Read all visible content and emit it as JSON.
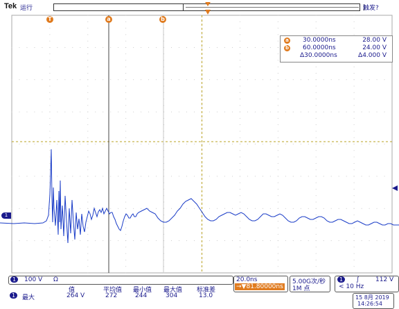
{
  "top": {
    "logo": "Tek",
    "run_state": "运行",
    "trigger_state": "触发?"
  },
  "markers": {
    "trigger_pos": "T",
    "cursor_a": "a",
    "cursor_b": "b"
  },
  "cursor_readout": {
    "a_time": "30.0000ns",
    "a_value": "28.00 V",
    "b_time": "60.0000ns",
    "b_value": "24.00 V",
    "delta_time": "Δ30.0000ns",
    "delta_value": "Δ4.000 V"
  },
  "channel": {
    "badge": "1",
    "scale": "100 V",
    "coupling": "Ω"
  },
  "measurement": {
    "badge": "1",
    "name": "最大",
    "headers": [
      "值",
      "平均值",
      "最小值",
      "最大值",
      "标准差"
    ],
    "values": [
      "264 V",
      "272",
      "244",
      "304",
      "13.0"
    ]
  },
  "timebase": {
    "scale": "20.0ns",
    "position": "→▼81.80000ns"
  },
  "acquisition": {
    "rate": "5.00G次/秒",
    "record": "1M 点"
  },
  "trigger": {
    "badge": "1",
    "slope": "∫",
    "level": "112 V",
    "freq": "< 10 Hz"
  },
  "datetime": {
    "date": "15 8月  2019",
    "time": "14:26:54"
  },
  "chart_data": {
    "type": "line",
    "series": [
      {
        "values": [
          [
            0,
            301
          ],
          [
            20,
            302
          ],
          [
            35,
            301
          ],
          [
            50,
            302
          ],
          [
            62,
            301
          ],
          [
            67,
            298
          ],
          [
            70,
            290
          ],
          [
            72,
            260
          ],
          [
            73,
            230
          ],
          [
            74,
            195
          ],
          [
            75,
            265
          ],
          [
            76,
            300
          ],
          [
            77,
            250
          ],
          [
            78,
            280
          ],
          [
            80,
            305
          ],
          [
            82,
            268
          ],
          [
            84,
            318
          ],
          [
            85,
            255
          ],
          [
            86,
            300
          ],
          [
            87,
            240
          ],
          [
            88,
            310
          ],
          [
            90,
            276
          ],
          [
            92,
            320
          ],
          [
            94,
            262
          ],
          [
            96,
            298
          ],
          [
            98,
            330
          ],
          [
            100,
            280
          ],
          [
            102,
            316
          ],
          [
            104,
            268
          ],
          [
            106,
            300
          ],
          [
            108,
            325
          ],
          [
            110,
            286
          ],
          [
            112,
            310
          ],
          [
            114,
            295
          ],
          [
            116,
            318
          ],
          [
            118,
            288
          ],
          [
            120,
            306
          ],
          [
            122,
            314
          ],
          [
            124,
            300
          ],
          [
            126,
            292
          ],
          [
            128,
            284
          ],
          [
            130,
            288
          ],
          [
            132,
            296
          ],
          [
            134,
            290
          ],
          [
            136,
            280
          ],
          [
            138,
            286
          ],
          [
            140,
            292
          ],
          [
            142,
            285
          ],
          [
            144,
            282
          ],
          [
            146,
            286
          ],
          [
            148,
            280
          ],
          [
            150,
            288
          ],
          [
            152,
            284
          ],
          [
            154,
            280
          ],
          [
            156,
            284
          ],
          [
            158,
            288
          ],
          [
            160,
            286
          ],
          [
            162,
            286
          ],
          [
            164,
            292
          ],
          [
            166,
            296
          ],
          [
            168,
            302
          ],
          [
            170,
            306
          ],
          [
            172,
            310
          ],
          [
            174,
            312
          ],
          [
            176,
            306
          ],
          [
            178,
            298
          ],
          [
            180,
            292
          ],
          [
            182,
            288
          ],
          [
            184,
            290
          ],
          [
            186,
            294
          ],
          [
            188,
            294
          ],
          [
            190,
            290
          ],
          [
            192,
            288
          ],
          [
            194,
            292
          ],
          [
            196,
            292
          ],
          [
            198,
            288
          ],
          [
            200,
            286
          ],
          [
            204,
            284
          ],
          [
            208,
            282
          ],
          [
            212,
            280
          ],
          [
            216,
            284
          ],
          [
            220,
            286
          ],
          [
            224,
            288
          ],
          [
            228,
            294
          ],
          [
            232,
            298
          ],
          [
            236,
            300
          ],
          [
            240,
            300
          ],
          [
            244,
            298
          ],
          [
            248,
            294
          ],
          [
            252,
            290
          ],
          [
            256,
            284
          ],
          [
            260,
            280
          ],
          [
            264,
            274
          ],
          [
            268,
            270
          ],
          [
            272,
            268
          ],
          [
            276,
            266
          ],
          [
            280,
            270
          ],
          [
            284,
            274
          ],
          [
            288,
            280
          ],
          [
            292,
            286
          ],
          [
            296,
            292
          ],
          [
            300,
            296
          ],
          [
            304,
            298
          ],
          [
            308,
            298
          ],
          [
            312,
            296
          ],
          [
            316,
            292
          ],
          [
            320,
            290
          ],
          [
            324,
            288
          ],
          [
            328,
            286
          ],
          [
            332,
            286
          ],
          [
            336,
            288
          ],
          [
            340,
            290
          ],
          [
            344,
            288
          ],
          [
            348,
            286
          ],
          [
            352,
            288
          ],
          [
            356,
            292
          ],
          [
            360,
            296
          ],
          [
            364,
            298
          ],
          [
            368,
            298
          ],
          [
            372,
            296
          ],
          [
            376,
            292
          ],
          [
            380,
            288
          ],
          [
            384,
            288
          ],
          [
            388,
            290
          ],
          [
            392,
            292
          ],
          [
            396,
            292
          ],
          [
            400,
            290
          ],
          [
            404,
            288
          ],
          [
            408,
            290
          ],
          [
            412,
            294
          ],
          [
            416,
            298
          ],
          [
            420,
            300
          ],
          [
            424,
            300
          ],
          [
            428,
            298
          ],
          [
            432,
            294
          ],
          [
            436,
            292
          ],
          [
            440,
            292
          ],
          [
            444,
            294
          ],
          [
            448,
            296
          ],
          [
            452,
            296
          ],
          [
            456,
            294
          ],
          [
            460,
            292
          ],
          [
            464,
            292
          ],
          [
            468,
            294
          ],
          [
            472,
            298
          ],
          [
            476,
            300
          ],
          [
            480,
            300
          ],
          [
            484,
            298
          ],
          [
            488,
            296
          ],
          [
            492,
            296
          ],
          [
            496,
            298
          ],
          [
            500,
            300
          ],
          [
            504,
            302
          ],
          [
            508,
            302
          ],
          [
            512,
            300
          ],
          [
            516,
            298
          ],
          [
            520,
            300
          ],
          [
            524,
            302
          ],
          [
            528,
            304
          ],
          [
            532,
            304
          ],
          [
            536,
            302
          ],
          [
            540,
            300
          ],
          [
            544,
            300
          ],
          [
            548,
            302
          ],
          [
            552,
            304
          ],
          [
            556,
            304
          ],
          [
            560,
            302
          ],
          [
            564,
            302
          ],
          [
            568,
            304
          ],
          [
            576,
            304
          ]
        ]
      }
    ]
  }
}
